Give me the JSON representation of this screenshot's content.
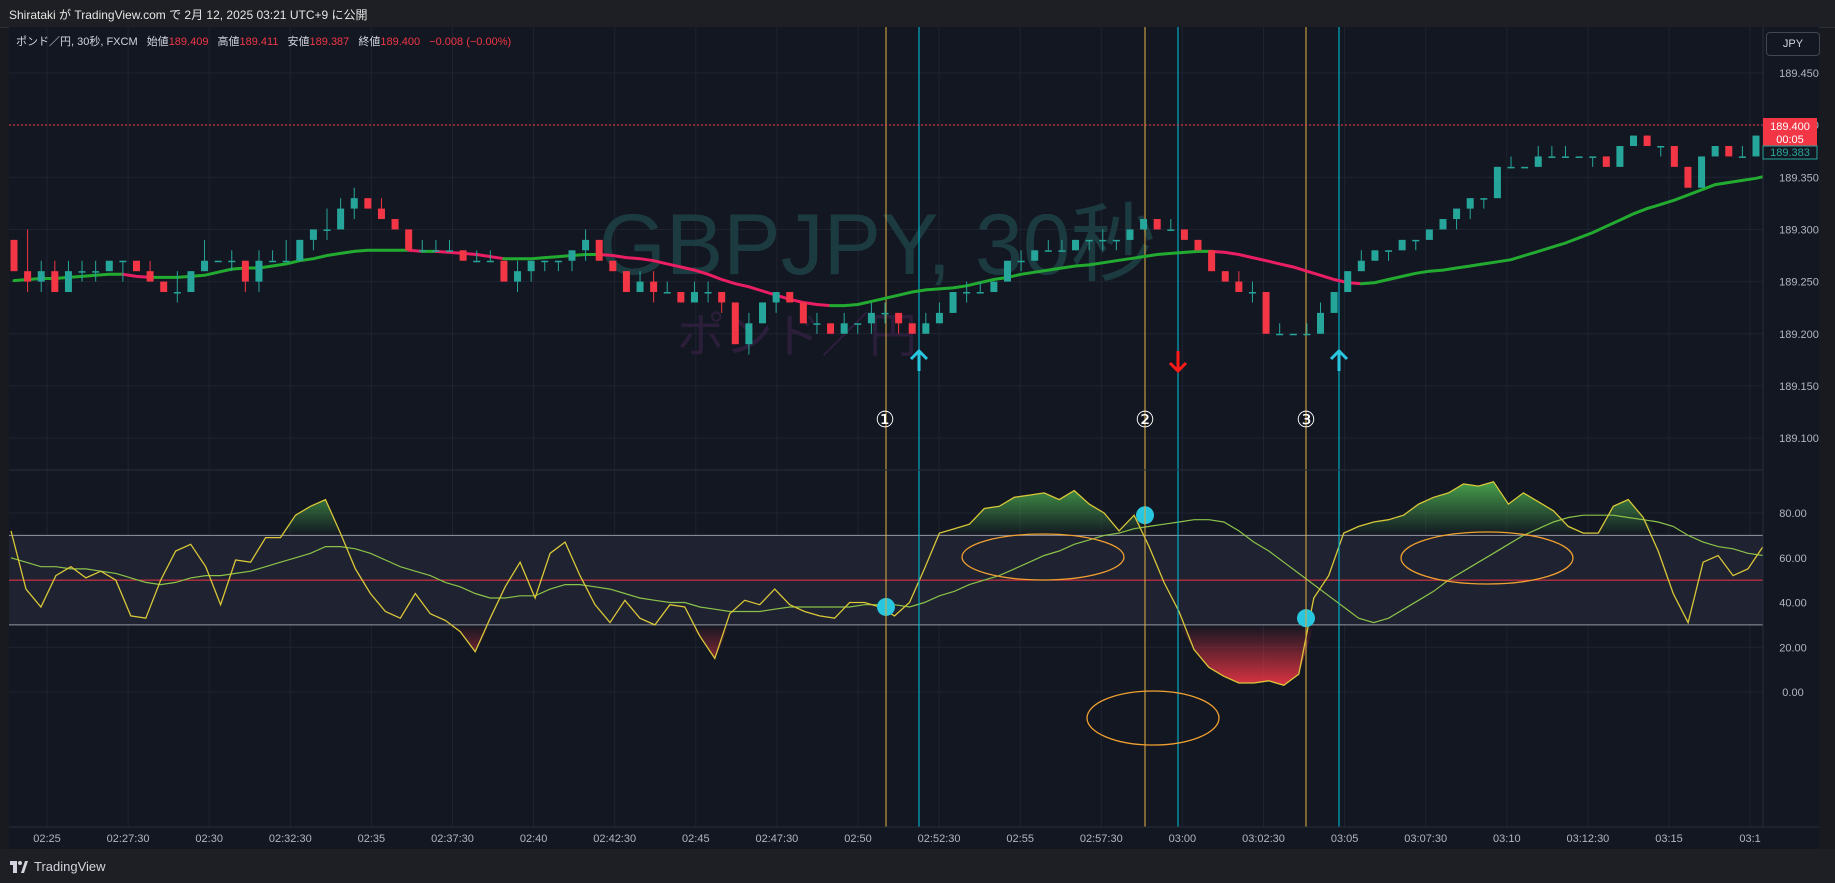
{
  "header": {
    "publisher": "Shirataki が TradingView.com で 2月 12, 2025 03:21 UTC+9 に公開"
  },
  "legend": {
    "symbol": "ポンド／円, 30秒, FXCM",
    "open_label": "始値",
    "open": "189.409",
    "high_label": "高値",
    "high": "189.411",
    "low_label": "安値",
    "low": "189.387",
    "close_label": "終値",
    "close": "189.400",
    "change": "−0.008 (−0.00%)"
  },
  "currency_button": "JPY",
  "watermark": {
    "title": "GBPJPY, 30秒",
    "subtitle": "ポンド／円"
  },
  "price_badge": {
    "price": "189.400",
    "countdown": "00:05",
    "other": "189.383"
  },
  "annotations": {
    "marker1": "①",
    "marker2": "②",
    "marker3": "③"
  },
  "footer": {
    "brand": "TradingView"
  },
  "colors": {
    "up": "#26a69a",
    "down": "#f23645",
    "ma_up": "#22ab30",
    "ma_down": "#e91e63",
    "osc": "#d9c738",
    "osc_signal": "#8bc34a",
    "cyan": "#00bcd4",
    "gold": "#d4a843"
  },
  "chart_data": {
    "type": "candlestick",
    "price_axis": {
      "ticks": [
        "189.450",
        "189.400",
        "189.350",
        "189.300",
        "189.250",
        "189.200",
        "189.150",
        "189.100"
      ],
      "range": [
        189.07,
        189.49
      ]
    },
    "time_axis": {
      "labels": [
        "02:25",
        "02:27:30",
        "02:30",
        "02:32:30",
        "02:35",
        "02:37:30",
        "02:40",
        "02:42:30",
        "02:45",
        "02:47:30",
        "02:50",
        "02:52:30",
        "02:55",
        "02:57:30",
        "03:00",
        "03:02:30",
        "03:05",
        "03:07:30",
        "03:10",
        "03:12:30",
        "03:15",
        "03:1"
      ]
    },
    "candles": [
      [
        189.29,
        189.29,
        189.26,
        189.26
      ],
      [
        189.26,
        189.3,
        189.24,
        189.25
      ],
      [
        189.25,
        189.27,
        189.24,
        189.26
      ],
      [
        189.26,
        189.27,
        189.24,
        189.24
      ],
      [
        189.24,
        189.27,
        189.24,
        189.26
      ],
      [
        189.26,
        189.27,
        189.25,
        189.26
      ],
      [
        189.26,
        189.27,
        189.25,
        189.26
      ],
      [
        189.26,
        189.27,
        189.26,
        189.27
      ],
      [
        189.27,
        189.27,
        189.25,
        189.27
      ],
      [
        189.27,
        189.27,
        189.26,
        189.26
      ],
      [
        189.26,
        189.27,
        189.25,
        189.25
      ],
      [
        189.25,
        189.25,
        189.24,
        189.24
      ],
      [
        189.24,
        189.26,
        189.23,
        189.24
      ],
      [
        189.24,
        189.26,
        189.24,
        189.26
      ],
      [
        189.26,
        189.29,
        189.26,
        189.27
      ],
      [
        189.27,
        189.27,
        189.27,
        189.27
      ],
      [
        189.27,
        189.28,
        189.26,
        189.27
      ],
      [
        189.27,
        189.27,
        189.24,
        189.25
      ],
      [
        189.25,
        189.28,
        189.24,
        189.27
      ],
      [
        189.27,
        189.28,
        189.27,
        189.27
      ],
      [
        189.27,
        189.29,
        189.27,
        189.27
      ],
      [
        189.27,
        189.29,
        189.27,
        189.29
      ],
      [
        189.29,
        189.3,
        189.28,
        189.3
      ],
      [
        189.3,
        189.32,
        189.29,
        189.3
      ],
      [
        189.3,
        189.33,
        189.3,
        189.32
      ],
      [
        189.32,
        189.34,
        189.31,
        189.33
      ],
      [
        189.33,
        189.33,
        189.32,
        189.32
      ],
      [
        189.32,
        189.33,
        189.31,
        189.31
      ],
      [
        189.31,
        189.31,
        189.3,
        189.3
      ],
      [
        189.3,
        189.3,
        189.28,
        189.28
      ],
      [
        189.28,
        189.29,
        189.28,
        189.28
      ],
      [
        189.28,
        189.29,
        189.28,
        189.28
      ],
      [
        189.28,
        189.29,
        189.28,
        189.28
      ],
      [
        189.28,
        189.28,
        189.27,
        189.27
      ],
      [
        189.27,
        189.28,
        189.27,
        189.27
      ],
      [
        189.27,
        189.28,
        189.27,
        189.27
      ],
      [
        189.27,
        189.27,
        189.25,
        189.25
      ],
      [
        189.25,
        189.27,
        189.24,
        189.26
      ],
      [
        189.26,
        189.27,
        189.25,
        189.27
      ],
      [
        189.27,
        189.27,
        189.26,
        189.27
      ],
      [
        189.27,
        189.27,
        189.26,
        189.27
      ],
      [
        189.27,
        189.28,
        189.26,
        189.28
      ],
      [
        189.28,
        189.3,
        189.27,
        189.29
      ],
      [
        189.29,
        189.29,
        189.27,
        189.27
      ],
      [
        189.27,
        189.27,
        189.26,
        189.26
      ],
      [
        189.26,
        189.26,
        189.24,
        189.24
      ],
      [
        189.24,
        189.26,
        189.24,
        189.25
      ],
      [
        189.25,
        189.26,
        189.23,
        189.24
      ],
      [
        189.24,
        189.25,
        189.24,
        189.24
      ],
      [
        189.24,
        189.24,
        189.23,
        189.23
      ],
      [
        189.23,
        189.25,
        189.23,
        189.24
      ],
      [
        189.24,
        189.25,
        189.23,
        189.24
      ],
      [
        189.24,
        189.24,
        189.22,
        189.23
      ],
      [
        189.23,
        189.23,
        189.19,
        189.19
      ],
      [
        189.19,
        189.22,
        189.18,
        189.21
      ],
      [
        189.21,
        189.23,
        189.21,
        189.23
      ],
      [
        189.23,
        189.24,
        189.22,
        189.24
      ],
      [
        189.24,
        189.24,
        189.23,
        189.23
      ],
      [
        189.23,
        189.23,
        189.21,
        189.21
      ],
      [
        189.21,
        189.22,
        189.2,
        189.21
      ],
      [
        189.21,
        189.21,
        189.2,
        189.2
      ],
      [
        189.2,
        189.22,
        189.2,
        189.21
      ],
      [
        189.21,
        189.21,
        189.2,
        189.21
      ],
      [
        189.21,
        189.23,
        189.2,
        189.22
      ],
      [
        189.22,
        189.23,
        189.21,
        189.22
      ],
      [
        189.22,
        189.22,
        189.2,
        189.21
      ],
      [
        189.21,
        189.21,
        189.2,
        189.2
      ],
      [
        189.2,
        189.22,
        189.2,
        189.21
      ],
      [
        189.21,
        189.23,
        189.21,
        189.22
      ],
      [
        189.22,
        189.24,
        189.22,
        189.24
      ],
      [
        189.24,
        189.25,
        189.23,
        189.24
      ],
      [
        189.24,
        189.25,
        189.24,
        189.24
      ],
      [
        189.24,
        189.25,
        189.24,
        189.25
      ],
      [
        189.25,
        189.27,
        189.25,
        189.27
      ],
      [
        189.27,
        189.28,
        189.26,
        189.27
      ],
      [
        189.27,
        189.28,
        189.27,
        189.28
      ],
      [
        189.28,
        189.29,
        189.28,
        189.28
      ],
      [
        189.28,
        189.29,
        189.28,
        189.28
      ],
      [
        189.28,
        189.29,
        189.28,
        189.29
      ],
      [
        189.29,
        189.29,
        189.28,
        189.29
      ],
      [
        189.29,
        189.3,
        189.28,
        189.29
      ],
      [
        189.29,
        189.29,
        189.28,
        189.29
      ],
      [
        189.29,
        189.3,
        189.29,
        189.3
      ],
      [
        189.3,
        189.31,
        189.3,
        189.31
      ],
      [
        189.31,
        189.31,
        189.3,
        189.3
      ],
      [
        189.3,
        189.31,
        189.3,
        189.3
      ],
      [
        189.3,
        189.3,
        189.29,
        189.29
      ],
      [
        189.29,
        189.29,
        189.28,
        189.28
      ],
      [
        189.28,
        189.28,
        189.26,
        189.26
      ],
      [
        189.26,
        189.26,
        189.25,
        189.25
      ],
      [
        189.25,
        189.26,
        189.24,
        189.24
      ],
      [
        189.24,
        189.25,
        189.23,
        189.24
      ],
      [
        189.24,
        189.24,
        189.2,
        189.2
      ],
      [
        189.2,
        189.21,
        189.2,
        189.2
      ],
      [
        189.2,
        189.2,
        189.2,
        189.2
      ],
      [
        189.2,
        189.21,
        189.2,
        189.2
      ],
      [
        189.2,
        189.23,
        189.2,
        189.22
      ],
      [
        189.22,
        189.24,
        189.22,
        189.24
      ],
      [
        189.24,
        189.26,
        189.24,
        189.26
      ],
      [
        189.26,
        189.28,
        189.26,
        189.27
      ],
      [
        189.27,
        189.28,
        189.27,
        189.28
      ],
      [
        189.28,
        189.28,
        189.27,
        189.28
      ],
      [
        189.28,
        189.29,
        189.28,
        189.29
      ],
      [
        189.29,
        189.29,
        189.28,
        189.29
      ],
      [
        189.29,
        189.3,
        189.29,
        189.3
      ],
      [
        189.3,
        189.31,
        189.3,
        189.31
      ],
      [
        189.31,
        189.32,
        189.3,
        189.32
      ],
      [
        189.32,
        189.33,
        189.31,
        189.33
      ],
      [
        189.33,
        189.33,
        189.32,
        189.33
      ],
      [
        189.33,
        189.36,
        189.33,
        189.36
      ],
      [
        189.36,
        189.37,
        189.36,
        189.36
      ],
      [
        189.36,
        189.36,
        189.36,
        189.36
      ],
      [
        189.36,
        189.38,
        189.36,
        189.37
      ],
      [
        189.37,
        189.38,
        189.37,
        189.37
      ],
      [
        189.37,
        189.38,
        189.37,
        189.37
      ],
      [
        189.37,
        189.37,
        189.37,
        189.37
      ],
      [
        189.37,
        189.37,
        189.36,
        189.37
      ],
      [
        189.37,
        189.37,
        189.36,
        189.36
      ],
      [
        189.36,
        189.38,
        189.36,
        189.38
      ],
      [
        189.38,
        189.39,
        189.38,
        189.39
      ],
      [
        189.39,
        189.39,
        189.38,
        189.38
      ],
      [
        189.38,
        189.38,
        189.37,
        189.38
      ],
      [
        189.38,
        189.38,
        189.36,
        189.36
      ],
      [
        189.36,
        189.36,
        189.34,
        189.34
      ],
      [
        189.34,
        189.37,
        189.34,
        189.37
      ],
      [
        189.37,
        189.38,
        189.37,
        189.38
      ],
      [
        189.38,
        189.38,
        189.37,
        189.37
      ],
      [
        189.37,
        189.38,
        189.37,
        189.37
      ],
      [
        189.37,
        189.39,
        189.37,
        189.39
      ]
    ],
    "moving_average": [
      189.251,
      189.252,
      189.253,
      189.253,
      189.254,
      189.255,
      189.256,
      189.257,
      189.257,
      189.255,
      189.254,
      189.254,
      189.254,
      189.255,
      189.256,
      189.259,
      189.262,
      189.263,
      189.263,
      189.265,
      189.267,
      189.27,
      189.272,
      189.275,
      189.277,
      189.279,
      189.28,
      189.28,
      189.28,
      189.28,
      189.279,
      189.279,
      189.278,
      189.277,
      189.276,
      189.274,
      189.272,
      189.272,
      189.272,
      189.273,
      189.274,
      189.275,
      189.276,
      189.276,
      189.275,
      189.273,
      189.272,
      189.27,
      189.267,
      189.264,
      189.261,
      189.257,
      189.252,
      189.248,
      189.245,
      189.241,
      189.237,
      189.233,
      189.23,
      189.228,
      189.227,
      189.227,
      189.228,
      189.231,
      189.234,
      189.237,
      189.24,
      189.242,
      189.243,
      189.244,
      189.246,
      189.249,
      189.252,
      189.254,
      189.257,
      189.259,
      189.261,
      189.263,
      189.265,
      189.266,
      189.268,
      189.27,
      189.272,
      189.274,
      189.276,
      189.277,
      189.278,
      189.279,
      189.279,
      189.278,
      189.276,
      189.273,
      189.27,
      189.267,
      189.264,
      189.26,
      189.256,
      189.252,
      189.249,
      189.248,
      189.249,
      189.252,
      189.255,
      189.258,
      189.26,
      189.261,
      189.263,
      189.265,
      189.267,
      189.269,
      189.271,
      189.275,
      189.279,
      189.283,
      189.287,
      189.292,
      189.297,
      189.303,
      189.309,
      189.315,
      189.32,
      189.324,
      189.328,
      189.333,
      189.338,
      189.343,
      189.345,
      189.347,
      189.349,
      189.352,
      189.355
    ],
    "oscillator": {
      "axis_ticks": [
        "80.00",
        "60.00",
        "40.00",
        "20.00",
        "0.00"
      ],
      "levels": [
        70,
        50,
        30
      ],
      "fast": [
        72,
        46,
        38,
        52,
        56,
        51,
        54,
        50,
        34,
        33,
        50,
        63,
        66,
        56,
        39,
        59,
        58,
        69,
        69,
        79,
        83,
        86,
        71,
        55,
        44,
        36,
        33,
        44,
        35,
        32,
        27,
        18,
        33,
        47,
        58,
        42,
        62,
        67,
        52,
        39,
        31,
        41,
        33,
        30,
        39,
        38,
        25,
        15,
        35,
        41,
        39,
        46,
        39,
        36,
        34,
        33,
        40,
        40,
        38,
        34,
        40,
        55,
        71,
        73,
        75,
        82,
        83,
        87,
        88,
        89,
        86,
        90,
        84,
        80,
        72,
        79,
        65,
        49,
        36,
        19,
        11,
        7,
        4,
        4,
        5,
        3,
        8,
        42,
        52,
        71,
        74,
        76,
        77,
        79,
        84,
        87,
        89,
        93,
        92,
        94,
        84,
        89,
        85,
        81,
        74,
        71,
        71,
        83,
        86,
        78,
        63,
        44,
        31,
        58,
        61,
        52,
        55,
        65
      ],
      "signal": [
        60,
        58,
        56,
        56,
        55,
        55,
        54,
        53,
        51,
        49,
        48,
        49,
        51,
        52,
        52,
        53,
        54,
        56,
        58,
        60,
        62,
        65,
        65,
        64,
        62,
        59,
        56,
        54,
        52,
        49,
        47,
        44,
        42,
        42,
        43,
        43,
        46,
        48,
        48,
        47,
        46,
        44,
        42,
        41,
        40,
        40,
        38,
        37,
        36,
        36,
        36,
        37,
        38,
        38,
        38,
        38,
        38,
        39,
        39,
        39,
        38,
        40,
        43,
        45,
        48,
        50,
        52,
        55,
        58,
        61,
        63,
        66,
        68,
        70,
        71,
        73,
        74,
        75,
        76,
        77,
        77,
        76,
        72,
        67,
        63,
        58,
        53,
        48,
        43,
        38,
        33,
        31,
        33,
        37,
        41,
        45,
        50,
        54,
        58,
        62,
        66,
        70,
        73,
        76,
        78,
        79,
        79,
        79,
        78,
        77,
        76,
        74,
        70,
        67,
        65,
        64,
        62,
        61,
        63
      ],
      "markers": [
        38,
        79,
        33
      ]
    }
  }
}
